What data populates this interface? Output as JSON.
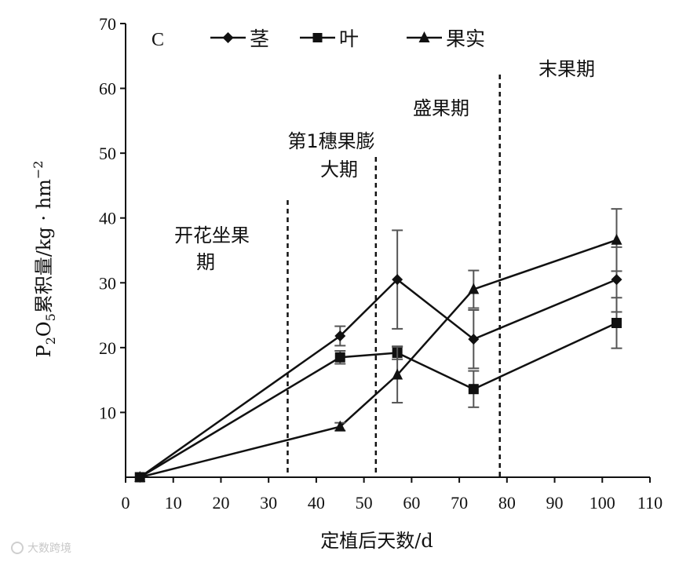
{
  "chart_data": {
    "type": "line",
    "panel_label": "C",
    "xlabel": "定植后天数/d",
    "ylabel": {
      "prefix": "P",
      "sub1": "2",
      "mid": "O",
      "sub2": "5",
      "rest": "累积量/kg · hm",
      "sup": "−2"
    },
    "xlim": [
      0,
      110
    ],
    "ylim": [
      0,
      70
    ],
    "x_ticks": [
      0,
      10,
      20,
      30,
      40,
      50,
      60,
      70,
      80,
      90,
      100,
      110
    ],
    "y_ticks": [
      10,
      20,
      30,
      40,
      50,
      60,
      70
    ],
    "legend_position": "top",
    "series": [
      {
        "name": "茎",
        "marker": "diamond",
        "color": "#111111",
        "x": [
          3,
          45,
          57,
          73,
          103
        ],
        "y": [
          0,
          21.8,
          30.5,
          21.3,
          30.5
        ],
        "error": [
          0,
          1.5,
          7.6,
          4.5,
          5.0
        ]
      },
      {
        "name": "叶",
        "marker": "square",
        "color": "#111111",
        "x": [
          3,
          45,
          57,
          73,
          103
        ],
        "y": [
          0,
          18.5,
          19.2,
          13.6,
          23.8
        ],
        "error": [
          0,
          1.0,
          1.0,
          2.8,
          3.9
        ]
      },
      {
        "name": "果实",
        "marker": "triangle",
        "color": "#111111",
        "x": [
          3,
          45,
          57,
          73,
          103
        ],
        "y": [
          0,
          7.8,
          15.8,
          29.0,
          36.6
        ],
        "error": [
          0,
          0.6,
          4.3,
          2.9,
          4.8
        ]
      }
    ],
    "phase_dividers": [
      34,
      52.5,
      78.5
    ],
    "phases": [
      {
        "lines": [
          "开花坐果",
          "期"
        ]
      },
      {
        "lines": [
          "第1穗果膨",
          "大期"
        ]
      },
      {
        "lines": [
          "盛果期"
        ]
      },
      {
        "lines": [
          "末果期"
        ]
      }
    ]
  },
  "watermark": "大数跨境"
}
